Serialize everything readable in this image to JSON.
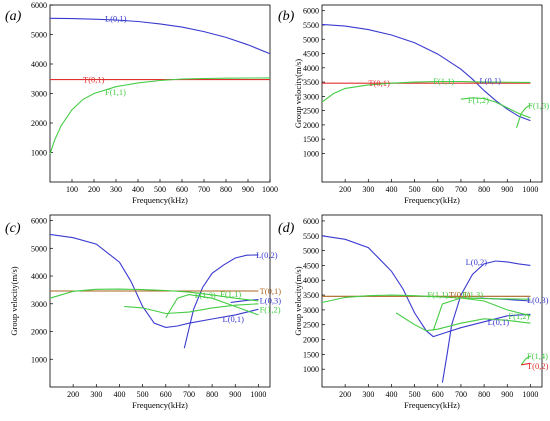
{
  "chart_data": [
    {
      "type": "line",
      "panel_label": "(a)",
      "xlabel": "Frequency(kHz)",
      "ylabel": "",
      "xlim": [
        0,
        1000
      ],
      "ylim": [
        0,
        6000
      ],
      "xticks": [
        100,
        200,
        300,
        400,
        500,
        600,
        700,
        800,
        900,
        1000
      ],
      "yticks": [
        1000,
        2000,
        3000,
        4000,
        5000,
        6000
      ],
      "grid": false,
      "series": [
        {
          "name": "L(0,1)",
          "color": "#3a3ad0",
          "points": [
            [
              0,
              5550
            ],
            [
              100,
              5540
            ],
            [
              200,
              5520
            ],
            [
              300,
              5490
            ],
            [
              400,
              5440
            ],
            [
              500,
              5360
            ],
            [
              600,
              5250
            ],
            [
              700,
              5100
            ],
            [
              800,
              4900
            ],
            [
              900,
              4650
            ],
            [
              1000,
              4350
            ]
          ]
        },
        {
          "name": "T(0,1)",
          "color": "#e03030",
          "points": [
            [
              0,
              3470
            ],
            [
              1000,
              3470
            ]
          ]
        },
        {
          "name": "F(1,1)",
          "color": "#44cc44",
          "points": [
            [
              0,
              950
            ],
            [
              20,
              1400
            ],
            [
              50,
              1900
            ],
            [
              100,
              2450
            ],
            [
              150,
              2800
            ],
            [
              200,
              3000
            ],
            [
              300,
              3230
            ],
            [
              400,
              3360
            ],
            [
              500,
              3440
            ],
            [
              600,
              3490
            ],
            [
              700,
              3510
            ],
            [
              800,
              3520
            ],
            [
              1000,
              3530
            ]
          ]
        }
      ],
      "labels": [
        {
          "text": "L(0,1)",
          "x": 250,
          "y": 5550,
          "color": "#3a3ad0"
        },
        {
          "text": "T(0,1)",
          "x": 150,
          "y": 3470,
          "color": "#e03030"
        },
        {
          "text": "F(1,1)",
          "x": 250,
          "y": 3050,
          "color": "#44cc44"
        }
      ]
    },
    {
      "type": "line",
      "panel_label": "(b)",
      "xlabel": "Frequency(kHz)",
      "ylabel": "Group velocity(m/s)",
      "xlim": [
        100,
        1050
      ],
      "ylim": [
        0,
        6200
      ],
      "xticks": [
        200,
        300,
        400,
        500,
        600,
        700,
        800,
        900,
        1000
      ],
      "yticks": [
        1000,
        1500,
        2000,
        2500,
        3000,
        3500,
        4000,
        4500,
        5000,
        5500,
        6000
      ],
      "grid": false,
      "series": [
        {
          "name": "L(0,1)",
          "color": "#3a3ad0",
          "points": [
            [
              100,
              5520
            ],
            [
              200,
              5460
            ],
            [
              300,
              5340
            ],
            [
              400,
              5150
            ],
            [
              500,
              4880
            ],
            [
              600,
              4480
            ],
            [
              700,
              3950
            ],
            [
              750,
              3600
            ],
            [
              800,
              3200
            ],
            [
              850,
              2850
            ],
            [
              900,
              2550
            ],
            [
              950,
              2300
            ],
            [
              1000,
              2150
            ]
          ]
        },
        {
          "name": "T(0,1)",
          "color": "#e03030",
          "points": [
            [
              100,
              3460
            ],
            [
              1000,
              3460
            ]
          ]
        },
        {
          "name": "F(1,1)",
          "color": "#44cc44",
          "points": [
            [
              100,
              2800
            ],
            [
              150,
              3100
            ],
            [
              200,
              3280
            ],
            [
              300,
              3400
            ],
            [
              400,
              3460
            ],
            [
              500,
              3500
            ],
            [
              600,
              3520
            ],
            [
              700,
              3520
            ],
            [
              800,
              3500
            ],
            [
              1000,
              3490
            ]
          ]
        },
        {
          "name": "F(1,2)",
          "color": "#44cc44",
          "points": [
            [
              700,
              2900
            ],
            [
              750,
              2950
            ],
            [
              800,
              2920
            ],
            [
              850,
              2800
            ],
            [
              900,
              2600
            ],
            [
              950,
              2400
            ],
            [
              1000,
              2250
            ]
          ]
        },
        {
          "name": "F(1,3)",
          "color": "#44cc44",
          "points": [
            [
              940,
              1900
            ],
            [
              960,
              2400
            ],
            [
              980,
              2600
            ],
            [
              1000,
              2700
            ]
          ]
        }
      ],
      "labels": [
        {
          "text": "T(0,1)",
          "x": 300,
          "y": 3460,
          "color": "#e03030"
        },
        {
          "text": "F(1,1)",
          "x": 580,
          "y": 3540,
          "color": "#44cc44"
        },
        {
          "text": "L(0,1)",
          "x": 780,
          "y": 3560,
          "color": "#3a3ad0"
        },
        {
          "text": "F(1,2)",
          "x": 730,
          "y": 2880,
          "color": "#44cc44"
        },
        {
          "text": "F(1,3)",
          "x": 990,
          "y": 2680,
          "color": "#44cc44"
        }
      ]
    },
    {
      "type": "line",
      "panel_label": "(c)",
      "xlabel": "Frequency(kHz)",
      "ylabel": "Group velocity(m/s)",
      "xlim": [
        100,
        1050
      ],
      "ylim": [
        0,
        6200
      ],
      "xticks": [
        200,
        300,
        400,
        500,
        600,
        700,
        800,
        900,
        1000
      ],
      "yticks": [
        1000,
        2000,
        3000,
        4000,
        5000,
        6000
      ],
      "grid": false,
      "series": [
        {
          "name": "L(0,1)",
          "color": "#3a3ad0",
          "points": [
            [
              100,
              5500
            ],
            [
              200,
              5380
            ],
            [
              300,
              5150
            ],
            [
              400,
              4500
            ],
            [
              450,
              3800
            ],
            [
              500,
              2900
            ],
            [
              550,
              2300
            ],
            [
              600,
              2150
            ],
            [
              650,
              2200
            ],
            [
              700,
              2300
            ],
            [
              800,
              2450
            ],
            [
              900,
              2600
            ],
            [
              1000,
              2800
            ]
          ]
        },
        {
          "name": "L(0,2)",
          "color": "#3a3ad0",
          "points": [
            [
              680,
              1400
            ],
            [
              720,
              2800
            ],
            [
              760,
              3600
            ],
            [
              800,
              4100
            ],
            [
              850,
              4400
            ],
            [
              900,
              4650
            ],
            [
              950,
              4750
            ],
            [
              1000,
              4760
            ]
          ]
        },
        {
          "name": "L(0,3)",
          "color": "#3a3ad0",
          "points": [
            [
              880,
              3050
            ],
            [
              950,
              3120
            ],
            [
              1000,
              3150
            ]
          ]
        },
        {
          "name": "T(0,1)",
          "color": "#aa6620",
          "points": [
            [
              100,
              3460
            ],
            [
              1000,
              3460
            ]
          ]
        },
        {
          "name": "F(1,1)",
          "color": "#44cc44",
          "points": [
            [
              100,
              3200
            ],
            [
              200,
              3450
            ],
            [
              300,
              3520
            ],
            [
              400,
              3530
            ],
            [
              500,
              3510
            ],
            [
              600,
              3480
            ],
            [
              700,
              3420
            ],
            [
              800,
              3320
            ],
            [
              900,
              3200
            ],
            [
              1000,
              3100
            ]
          ]
        },
        {
          "name": "F(1,2)",
          "color": "#44cc44",
          "points": [
            [
              420,
              2900
            ],
            [
              500,
              2850
            ],
            [
              600,
              2650
            ],
            [
              700,
              2700
            ],
            [
              800,
              2850
            ],
            [
              900,
              2950
            ],
            [
              1000,
              3000
            ]
          ]
        },
        {
          "name": "F(1,3)",
          "color": "#44cc44",
          "points": [
            [
              600,
              2500
            ],
            [
              650,
              3200
            ],
            [
              700,
              3330
            ],
            [
              800,
              3200
            ],
            [
              900,
              2900
            ],
            [
              1000,
              2600
            ]
          ]
        }
      ],
      "labels": [
        {
          "text": "L(0,2)",
          "x": 990,
          "y": 4760,
          "color": "#3a3ad0"
        },
        {
          "text": "F(1,3)",
          "x": 725,
          "y": 3320,
          "color": "#44cc44"
        },
        {
          "text": "F(1,1)",
          "x": 835,
          "y": 3360,
          "color": "#44cc44"
        },
        {
          "text": "T(0,1)",
          "x": 1005,
          "y": 3460,
          "color": "#aa6620"
        },
        {
          "text": "L(0,3)",
          "x": 1005,
          "y": 3120,
          "color": "#3a3ad0"
        },
        {
          "text": "F(1,2)",
          "x": 1005,
          "y": 2800,
          "color": "#44cc44"
        },
        {
          "text": "L(0,1)",
          "x": 845,
          "y": 2450,
          "color": "#3a3ad0"
        }
      ]
    },
    {
      "type": "line",
      "panel_label": "(d)",
      "xlabel": "Frequency(kHz)",
      "ylabel": "Group velocity(m/s)",
      "xlim": [
        100,
        1050
      ],
      "ylim": [
        400,
        6200
      ],
      "xticks": [
        200,
        300,
        400,
        500,
        600,
        700,
        800,
        900,
        1000
      ],
      "yticks": [
        1000,
        1500,
        2000,
        2500,
        3000,
        3500,
        4000,
        4500,
        5000,
        5500,
        6000
      ],
      "grid": false,
      "series": [
        {
          "name": "L(0,1)",
          "color": "#3a3ad0",
          "points": [
            [
              100,
              5500
            ],
            [
              200,
              5380
            ],
            [
              300,
              5100
            ],
            [
              400,
              4300
            ],
            [
              450,
              3700
            ],
            [
              500,
              2900
            ],
            [
              550,
              2300
            ],
            [
              580,
              2100
            ],
            [
              620,
              2200
            ],
            [
              700,
              2400
            ],
            [
              800,
              2600
            ],
            [
              900,
              2800
            ],
            [
              1000,
              2850
            ]
          ]
        },
        {
          "name": "L(0,2)",
          "color": "#3a3ad0",
          "points": [
            [
              620,
              550
            ],
            [
              640,
              1500
            ],
            [
              660,
              2500
            ],
            [
              700,
              3500
            ],
            [
              750,
              4200
            ],
            [
              800,
              4550
            ],
            [
              850,
              4650
            ],
            [
              900,
              4620
            ],
            [
              950,
              4550
            ],
            [
              1000,
              4500
            ]
          ]
        },
        {
          "name": "L(0,3)",
          "color": "#3a3ad0",
          "points": [
            [
              780,
              3400
            ],
            [
              900,
              3350
            ],
            [
              1000,
              3300
            ]
          ]
        },
        {
          "name": "T(0,1)",
          "color": "#aa6620",
          "points": [
            [
              100,
              3460
            ],
            [
              1000,
              3460
            ]
          ]
        },
        {
          "name": "F(1,1)",
          "color": "#44cc44",
          "points": [
            [
              100,
              3250
            ],
            [
              200,
              3420
            ],
            [
              300,
              3480
            ],
            [
              400,
              3500
            ],
            [
              500,
              3480
            ],
            [
              600,
              3440
            ],
            [
              700,
              3400
            ],
            [
              800,
              3380
            ],
            [
              900,
              3370
            ],
            [
              1000,
              3360
            ]
          ]
        },
        {
          "name": "F(1,2)",
          "color": "#44cc44",
          "points": [
            [
              420,
              2900
            ],
            [
              500,
              2500
            ],
            [
              550,
              2300
            ],
            [
              600,
              2350
            ],
            [
              700,
              2550
            ],
            [
              800,
              2700
            ],
            [
              900,
              2650
            ],
            [
              1000,
              2550
            ]
          ]
        },
        {
          "name": "F(1,3)",
          "color": "#44cc44",
          "points": [
            [
              580,
              2300
            ],
            [
              620,
              3200
            ],
            [
              700,
              3400
            ],
            [
              800,
              3300
            ],
            [
              900,
              3000
            ],
            [
              1000,
              2800
            ]
          ]
        },
        {
          "name": "F(1,4)",
          "color": "#44cc44",
          "points": [
            [
              960,
              1150
            ],
            [
              980,
              1350
            ],
            [
              1000,
              1450
            ]
          ]
        },
        {
          "name": "T(0,2)",
          "color": "#e03030",
          "points": [
            [
              960,
              1150
            ],
            [
              1000,
              1200
            ]
          ]
        }
      ],
      "labels": [
        {
          "text": "L(0,2)",
          "x": 720,
          "y": 4620,
          "color": "#3a3ad0"
        },
        {
          "text": "F(1,1)",
          "x": 555,
          "y": 3520,
          "color": "#44cc44"
        },
        {
          "text": "T(0,1)",
          "x": 648,
          "y": 3520,
          "color": "#aa6620"
        },
        {
          "text": "F(1,3)",
          "x": 705,
          "y": 3520,
          "color": "#44cc44"
        },
        {
          "text": "L(0,3)",
          "x": 985,
          "y": 3330,
          "color": "#3a3ad0"
        },
        {
          "text": "F(1,2)",
          "x": 905,
          "y": 2800,
          "color": "#44cc44"
        },
        {
          "text": "L(0,1)",
          "x": 815,
          "y": 2600,
          "color": "#3a3ad0"
        },
        {
          "text": "F(1,4)",
          "x": 985,
          "y": 1450,
          "color": "#44cc44"
        },
        {
          "text": "T(0,2)",
          "x": 985,
          "y": 1100,
          "color": "#e03030"
        }
      ]
    }
  ]
}
